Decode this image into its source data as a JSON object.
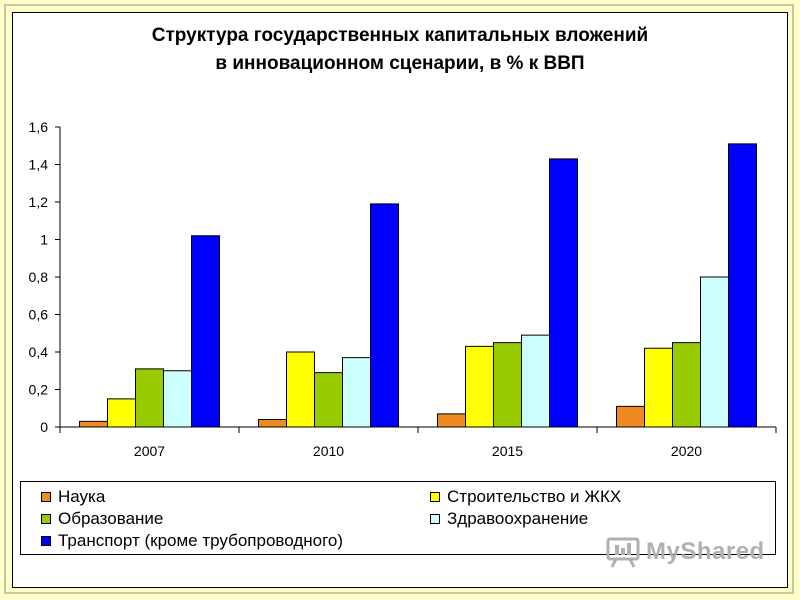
{
  "title_lines": [
    "Структура государственных капитальных вложений",
    "в инновационном сценарии, в % к ВВП"
  ],
  "watermark": "MyShared",
  "colors": {
    "background": "#FFFFCC",
    "science": "#F08A20",
    "construction": "#FFFF00",
    "education": "#99CC00",
    "healthcare": "#CCFFFF",
    "transport": "#0000FF"
  },
  "chart_data": {
    "type": "bar",
    "title": "Структура государственных капитальных вложений в инновационном сценарии, в % к ВВП",
    "categories": [
      "2007",
      "2010",
      "2015",
      "2020"
    ],
    "y_ticks": [
      "0",
      "0,2",
      "0,4",
      "0,6",
      "0,8",
      "1",
      "1,2",
      "1,4",
      "1,6"
    ],
    "ylim": [
      0,
      1.6
    ],
    "grid": false,
    "legend_position": "bottom",
    "series": [
      {
        "name": "Наука",
        "color": "#F08A20",
        "values": [
          0.03,
          0.04,
          0.07,
          0.11
        ]
      },
      {
        "name": "Строительство и ЖКХ",
        "color": "#FFFF00",
        "values": [
          0.15,
          0.4,
          0.43,
          0.42
        ]
      },
      {
        "name": "Образование",
        "color": "#99CC00",
        "values": [
          0.31,
          0.29,
          0.45,
          0.45
        ]
      },
      {
        "name": "Здравоохранение",
        "color": "#CCFFFF",
        "values": [
          0.3,
          0.37,
          0.49,
          0.8
        ]
      },
      {
        "name": "Транспорт (кроме трубопроводного)",
        "color": "#0000FF",
        "values": [
          1.02,
          1.19,
          1.43,
          1.51
        ]
      }
    ]
  }
}
